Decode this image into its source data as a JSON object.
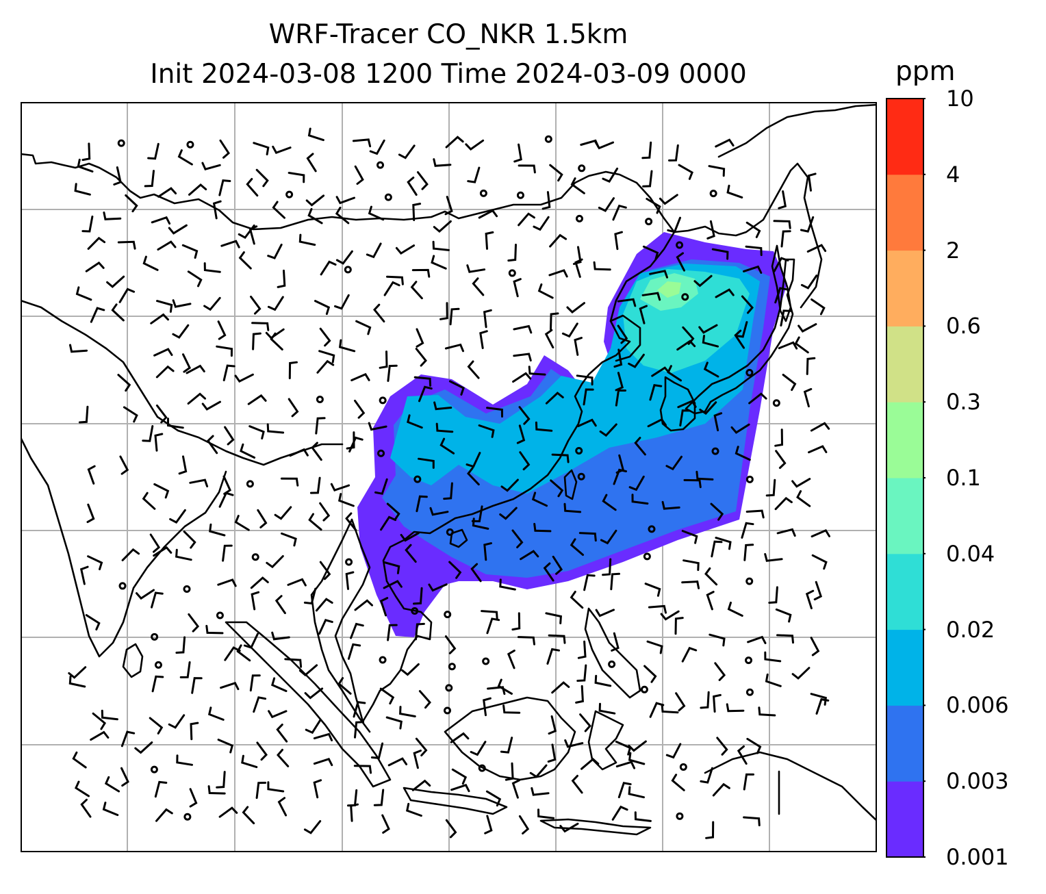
{
  "title": {
    "line1": "WRF-Tracer CO_NKR 1.5km",
    "line2": "Init 2024-03-08 1200 Time 2024-03-09 0000"
  },
  "colorbar": {
    "unit": "ppm",
    "levels": [
      "0.001",
      "0.003",
      "0.006",
      "0.02",
      "0.04",
      "0.1",
      "0.3",
      "0.6",
      "2",
      "4",
      "10"
    ],
    "colors": [
      "#6a2cff",
      "#2f73f0",
      "#00b3e8",
      "#2fded6",
      "#6af5c0",
      "#9afc97",
      "#d0e187",
      "#ffad5e",
      "#ff7a3c",
      "#ff2b14"
    ]
  },
  "map": {
    "gridlines": true,
    "coastline_color": "#000000",
    "gridline_color": "#b0b0b0",
    "wind_barb_color": "#000000",
    "plume_levels": [
      "0.003",
      "0.006",
      "0.02",
      "0.04",
      "0.1"
    ]
  }
}
